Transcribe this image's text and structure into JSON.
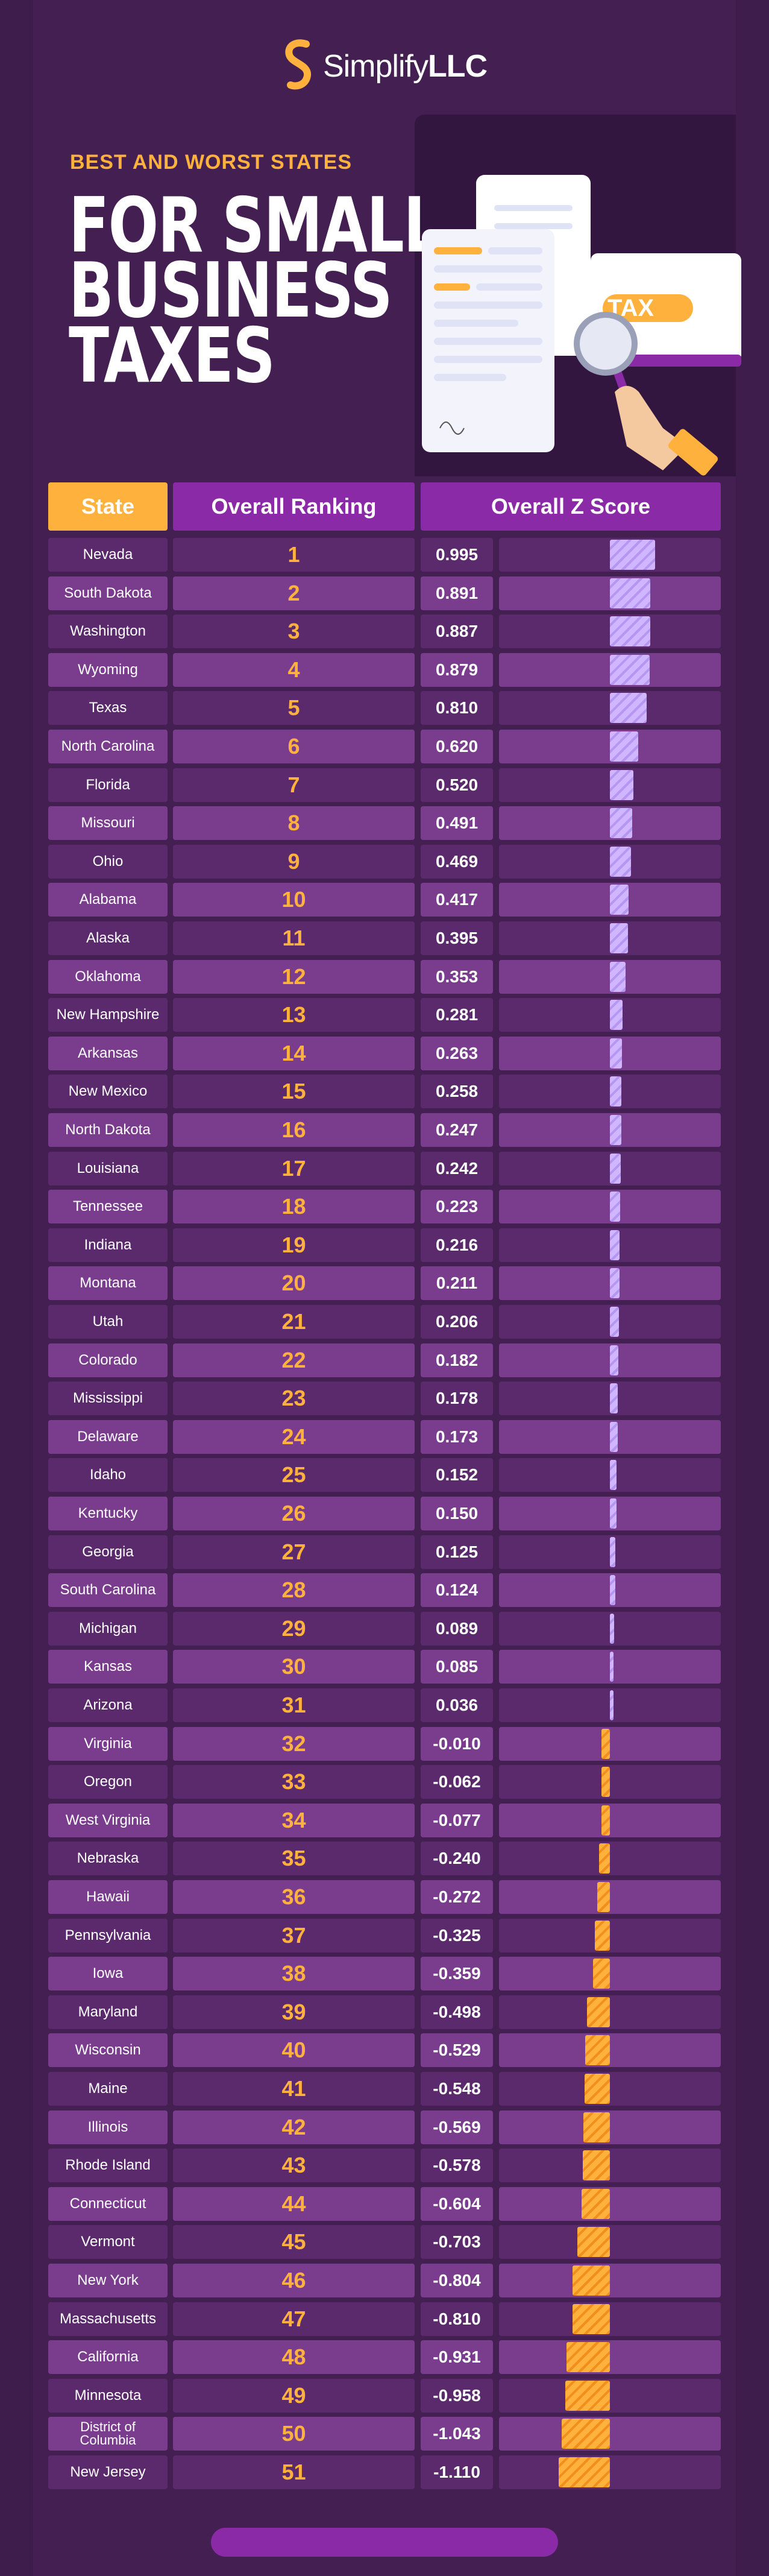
{
  "brand": {
    "name_part1": "Simplify",
    "name_part2": "LLC",
    "accent_color": "#ffb13d",
    "purple_color": "#8a2aa6"
  },
  "header": {
    "subtitle": "BEST AND WORST STATES",
    "title_lines": [
      "FOR SMALL",
      "BUSINESS",
      "TAXES"
    ],
    "illustration_label": "TAX"
  },
  "chart_data": {
    "type": "bar",
    "title": "Best and Worst States for Small Business Taxes",
    "columns": [
      "State",
      "Overall Ranking",
      "Overall Z Score"
    ],
    "xlim": [
      -1.11,
      0.995
    ],
    "rows": [
      {
        "state": "Nevada",
        "rank": "1",
        "z": "0.995",
        "value": 0.995
      },
      {
        "state": "South Dakota",
        "rank": "2",
        "z": "0.891",
        "value": 0.891
      },
      {
        "state": "Washington",
        "rank": "3",
        "z": "0.887",
        "value": 0.887
      },
      {
        "state": "Wyoming",
        "rank": "4",
        "z": "0.879",
        "value": 0.879
      },
      {
        "state": "Texas",
        "rank": "5",
        "z": "0.810",
        "value": 0.81
      },
      {
        "state": "North Carolina",
        "rank": "6",
        "z": "0.620",
        "value": 0.62
      },
      {
        "state": "Florida",
        "rank": "7",
        "z": "0.520",
        "value": 0.52
      },
      {
        "state": "Missouri",
        "rank": "8",
        "z": "0.491",
        "value": 0.491
      },
      {
        "state": "Ohio",
        "rank": "9",
        "z": "0.469",
        "value": 0.469
      },
      {
        "state": "Alabama",
        "rank": "10",
        "z": "0.417",
        "value": 0.417
      },
      {
        "state": "Alaska",
        "rank": "11",
        "z": "0.395",
        "value": 0.395
      },
      {
        "state": "Oklahoma",
        "rank": "12",
        "z": "0.353",
        "value": 0.353
      },
      {
        "state": "New Hampshire",
        "rank": "13",
        "z": "0.281",
        "value": 0.281
      },
      {
        "state": "Arkansas",
        "rank": "14",
        "z": "0.263",
        "value": 0.263
      },
      {
        "state": "New Mexico",
        "rank": "15",
        "z": "0.258",
        "value": 0.258
      },
      {
        "state": "North Dakota",
        "rank": "16",
        "z": "0.247",
        "value": 0.247
      },
      {
        "state": "Louisiana",
        "rank": "17",
        "z": "0.242",
        "value": 0.242
      },
      {
        "state": "Tennessee",
        "rank": "18",
        "z": "0.223",
        "value": 0.223
      },
      {
        "state": "Indiana",
        "rank": "19",
        "z": "0.216",
        "value": 0.216
      },
      {
        "state": "Montana",
        "rank": "20",
        "z": "0.211",
        "value": 0.211
      },
      {
        "state": "Utah",
        "rank": "21",
        "z": "0.206",
        "value": 0.206
      },
      {
        "state": "Colorado",
        "rank": "22",
        "z": "0.182",
        "value": 0.182
      },
      {
        "state": "Mississippi",
        "rank": "23",
        "z": "0.178",
        "value": 0.178
      },
      {
        "state": "Delaware",
        "rank": "24",
        "z": "0.173",
        "value": 0.173
      },
      {
        "state": "Idaho",
        "rank": "25",
        "z": "0.152",
        "value": 0.152
      },
      {
        "state": "Kentucky",
        "rank": "26",
        "z": "0.150",
        "value": 0.15
      },
      {
        "state": "Georgia",
        "rank": "27",
        "z": "0.125",
        "value": 0.125
      },
      {
        "state": "South Carolina",
        "rank": "28",
        "z": "0.124",
        "value": 0.124
      },
      {
        "state": "Michigan",
        "rank": "29",
        "z": "0.089",
        "value": 0.089
      },
      {
        "state": "Kansas",
        "rank": "30",
        "z": "0.085",
        "value": 0.085
      },
      {
        "state": "Arizona",
        "rank": "31",
        "z": "0.036",
        "value": 0.036
      },
      {
        "state": "Virginia",
        "rank": "32",
        "z": "-0.010",
        "value": -0.01
      },
      {
        "state": "Oregon",
        "rank": "33",
        "z": "-0.062",
        "value": -0.062
      },
      {
        "state": "West Virginia",
        "rank": "34",
        "z": "-0.077",
        "value": -0.077
      },
      {
        "state": "Nebraska",
        "rank": "35",
        "z": "-0.240",
        "value": -0.24
      },
      {
        "state": "Hawaii",
        "rank": "36",
        "z": "-0.272",
        "value": -0.272
      },
      {
        "state": "Pennsylvania",
        "rank": "37",
        "z": "-0.325",
        "value": -0.325
      },
      {
        "state": "Iowa",
        "rank": "38",
        "z": "-0.359",
        "value": -0.359
      },
      {
        "state": "Maryland",
        "rank": "39",
        "z": "-0.498",
        "value": -0.498
      },
      {
        "state": "Wisconsin",
        "rank": "40",
        "z": "-0.529",
        "value": -0.529
      },
      {
        "state": "Maine",
        "rank": "41",
        "z": "-0.548",
        "value": -0.548
      },
      {
        "state": "Illinois",
        "rank": "42",
        "z": "-0.569",
        "value": -0.569
      },
      {
        "state": "Rhode Island",
        "rank": "43",
        "z": "-0.578",
        "value": -0.578
      },
      {
        "state": "Connecticut",
        "rank": "44",
        "z": "-0.604",
        "value": -0.604
      },
      {
        "state": "Vermont",
        "rank": "45",
        "z": "-0.703",
        "value": -0.703
      },
      {
        "state": "New York",
        "rank": "46",
        "z": "-0.804",
        "value": -0.804
      },
      {
        "state": "Massachusetts",
        "rank": "47",
        "z": "-0.810",
        "value": -0.81
      },
      {
        "state": "California",
        "rank": "48",
        "z": "-0.931",
        "value": -0.931
      },
      {
        "state": "Minnesota",
        "rank": "49",
        "z": "-0.958",
        "value": -0.958
      },
      {
        "state": "District of Columbia",
        "rank": "50",
        "z": "-1.043",
        "value": -1.043
      },
      {
        "state": "New Jersey",
        "rank": "51",
        "z": "-1.110",
        "value": -1.11
      }
    ]
  }
}
